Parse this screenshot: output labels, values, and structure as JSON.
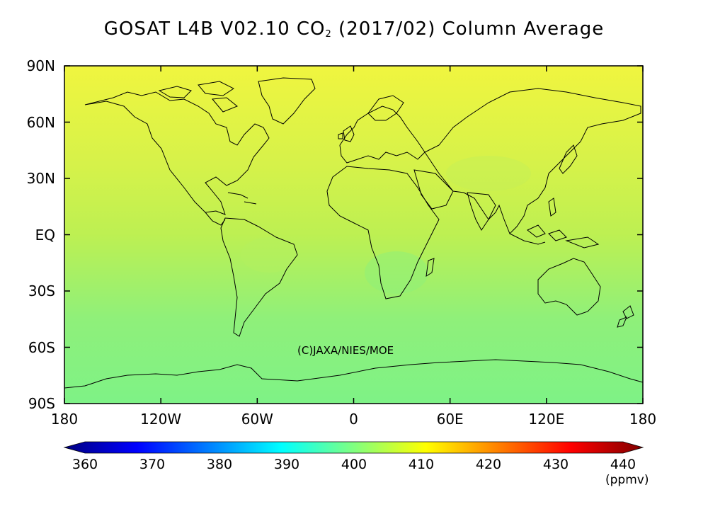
{
  "title": {
    "prefix": "GOSAT L4B V02.10 CO",
    "subscript": "2",
    "suffix": " (2017/02) Column Average"
  },
  "map": {
    "lat_labels": [
      "90N",
      "60N",
      "30N",
      "EQ",
      "30S",
      "60S",
      "90S"
    ],
    "lat_values": [
      90,
      60,
      30,
      0,
      -30,
      -60,
      -90
    ],
    "lon_labels": [
      "180",
      "120W",
      "60W",
      "0",
      "60E",
      "120E",
      "180"
    ],
    "lon_values": [
      -180,
      -120,
      -60,
      0,
      60,
      120,
      180
    ],
    "copyright": "(C)JAXA/NIES/MOE",
    "field_colors": {
      "north": "#f0f53f",
      "mid_north": "#d5f24a",
      "equator": "#bdf052",
      "south": "#8ff07a",
      "far_south": "#7ef286"
    }
  },
  "colorbar": {
    "ticks": [
      "360",
      "370",
      "380",
      "390",
      "400",
      "410",
      "420",
      "430",
      "440"
    ],
    "unit": "(ppmv)",
    "colors": [
      "#00007f",
      "#0000ff",
      "#0080ff",
      "#00ffff",
      "#80ff80",
      "#ffff00",
      "#ff8000",
      "#ff0000",
      "#7f0000"
    ]
  }
}
